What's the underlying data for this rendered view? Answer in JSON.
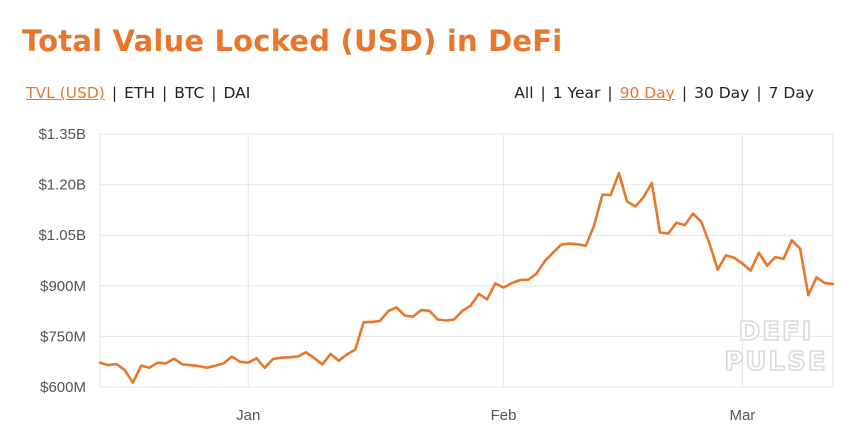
{
  "title": "Total Value Locked (USD) in DeFi",
  "unit_options": [
    {
      "label": "TVL (USD)",
      "active": true
    },
    {
      "label": "ETH",
      "active": false
    },
    {
      "label": "BTC",
      "active": false
    },
    {
      "label": "DAI",
      "active": false
    }
  ],
  "range_options": [
    {
      "label": "All",
      "active": false
    },
    {
      "label": "1 Year",
      "active": false
    },
    {
      "label": "90 Day",
      "active": true
    },
    {
      "label": "30 Day",
      "active": false
    },
    {
      "label": "7 Day",
      "active": false
    }
  ],
  "separator": "|",
  "watermark": {
    "line1": "DEFI",
    "line2": "PULSE"
  },
  "colors": {
    "line": "#e8772e",
    "grid": "#e6e6e6",
    "accent": "#e8772e"
  },
  "chart_data": {
    "type": "line",
    "title": "Total Value Locked (USD) in DeFi",
    "xlabel": "",
    "ylabel": "",
    "x_ticks": [
      {
        "label": "Jan",
        "x": "2020-01-01"
      },
      {
        "label": "Feb",
        "x": "2020-02-01"
      },
      {
        "label": "Mar",
        "x": "2020-03-01"
      }
    ],
    "xlim": [
      "2019-12-14",
      "2020-03-12"
    ],
    "ylim": [
      600,
      1350
    ],
    "y_ticks": [
      {
        "label": "$600M",
        "value": 600
      },
      {
        "label": "$750M",
        "value": 750
      },
      {
        "label": "$900M",
        "value": 900
      },
      {
        "label": "$1.05B",
        "value": 1050
      },
      {
        "label": "$1.20B",
        "value": 1200
      },
      {
        "label": "$1.35B",
        "value": 1350
      }
    ],
    "grid": true,
    "series": [
      {
        "values": [
          [
            "2019-12-14",
            672
          ],
          [
            "2019-12-15",
            665
          ],
          [
            "2019-12-16",
            668
          ],
          [
            "2019-12-17",
            650
          ],
          [
            "2019-12-18",
            613
          ],
          [
            "2019-12-19",
            663
          ],
          [
            "2019-12-20",
            657
          ],
          [
            "2019-12-21",
            672
          ],
          [
            "2019-12-22",
            670
          ],
          [
            "2019-12-23",
            684
          ],
          [
            "2019-12-24",
            667
          ],
          [
            "2019-12-25",
            665
          ],
          [
            "2019-12-26",
            662
          ],
          [
            "2019-12-27",
            657
          ],
          [
            "2019-12-28",
            663
          ],
          [
            "2019-12-29",
            670
          ],
          [
            "2019-12-30",
            690
          ],
          [
            "2019-12-31",
            675
          ],
          [
            "2020-01-01",
            672
          ],
          [
            "2020-01-02",
            685
          ],
          [
            "2020-01-03",
            657
          ],
          [
            "2020-01-04",
            683
          ],
          [
            "2020-01-05",
            687
          ],
          [
            "2020-01-06",
            688
          ],
          [
            "2020-01-07",
            690
          ],
          [
            "2020-01-08",
            703
          ],
          [
            "2020-01-09",
            686
          ],
          [
            "2020-01-10",
            667
          ],
          [
            "2020-01-11",
            698
          ],
          [
            "2020-01-12",
            678
          ],
          [
            "2020-01-13",
            697
          ],
          [
            "2020-01-14",
            711
          ],
          [
            "2020-01-15",
            792
          ],
          [
            "2020-01-16",
            793
          ],
          [
            "2020-01-17",
            796
          ],
          [
            "2020-01-18",
            825
          ],
          [
            "2020-01-19",
            836
          ],
          [
            "2020-01-20",
            812
          ],
          [
            "2020-01-21",
            808
          ],
          [
            "2020-01-22",
            828
          ],
          [
            "2020-01-23",
            826
          ],
          [
            "2020-01-24",
            800
          ],
          [
            "2020-01-25",
            797
          ],
          [
            "2020-01-26",
            800
          ],
          [
            "2020-01-27",
            826
          ],
          [
            "2020-01-28",
            841
          ],
          [
            "2020-01-29",
            876
          ],
          [
            "2020-01-30",
            860
          ],
          [
            "2020-01-31",
            907
          ],
          [
            "2020-02-01",
            895
          ],
          [
            "2020-02-02",
            908
          ],
          [
            "2020-02-03",
            917
          ],
          [
            "2020-02-04",
            918
          ],
          [
            "2020-02-05",
            936
          ],
          [
            "2020-02-06",
            973
          ],
          [
            "2020-02-07",
            998
          ],
          [
            "2020-02-08",
            1022
          ],
          [
            "2020-02-09",
            1025
          ],
          [
            "2020-02-10",
            1023
          ],
          [
            "2020-02-11",
            1019
          ],
          [
            "2020-02-12",
            1080
          ],
          [
            "2020-02-13",
            1170
          ],
          [
            "2020-02-14",
            1169
          ],
          [
            "2020-02-15",
            1234
          ],
          [
            "2020-02-16",
            1150
          ],
          [
            "2020-02-17",
            1135
          ],
          [
            "2020-02-18",
            1163
          ],
          [
            "2020-02-19",
            1205
          ],
          [
            "2020-02-20",
            1058
          ],
          [
            "2020-02-21",
            1055
          ],
          [
            "2020-02-22",
            1087
          ],
          [
            "2020-02-23",
            1080
          ],
          [
            "2020-02-24",
            1114
          ],
          [
            "2020-02-25",
            1090
          ],
          [
            "2020-02-26",
            1025
          ],
          [
            "2020-02-27",
            948
          ],
          [
            "2020-02-28",
            990
          ],
          [
            "2020-02-29",
            983
          ],
          [
            "2020-03-01",
            966
          ],
          [
            "2020-03-02",
            945
          ],
          [
            "2020-03-03",
            998
          ],
          [
            "2020-03-04",
            960
          ],
          [
            "2020-03-05",
            985
          ],
          [
            "2020-03-06",
            980
          ],
          [
            "2020-03-07",
            1035
          ],
          [
            "2020-03-08",
            1010
          ],
          [
            "2020-03-09",
            872
          ],
          [
            "2020-03-10",
            925
          ],
          [
            "2020-03-11",
            908
          ],
          [
            "2020-03-12",
            905
          ]
        ]
      }
    ]
  }
}
